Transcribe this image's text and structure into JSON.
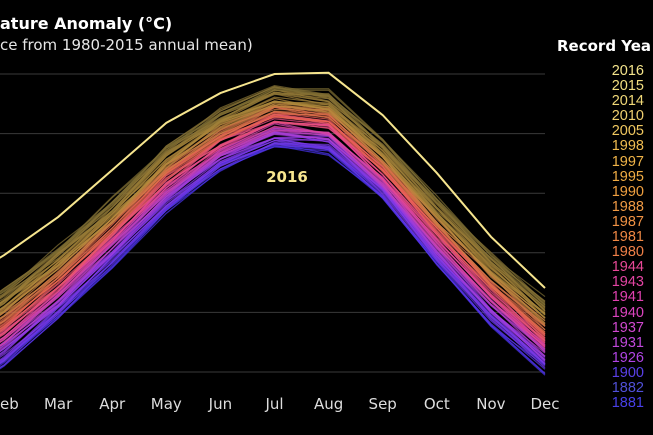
{
  "chart_data": {
    "type": "line",
    "title": "ature Anomaly (°C)",
    "subtitle": "ce from 1980-2015 annual mean)",
    "categories": [
      "eb",
      "Mar",
      "Apr",
      "May",
      "Jun",
      "Jul",
      "Aug",
      "Sep",
      "Oct",
      "Nov",
      "Dec"
    ],
    "ylim": [
      0,
      5.2
    ],
    "grid": true,
    "highlight_label": "2016",
    "series": [
      {
        "name": "2016",
        "color": "#f6e58e",
        "values": [
          1.96,
          2.6,
          3.39,
          4.18,
          4.68,
          5.0,
          5.02,
          4.31,
          3.34,
          2.27,
          1.41
        ]
      }
    ],
    "other_years_envelope": {
      "upper": [
        1.4,
        2.1,
        2.9,
        3.8,
        4.4,
        4.8,
        4.7,
        3.9,
        2.9,
        2.0,
        1.2
      ],
      "lower": [
        0.1,
        0.9,
        1.8,
        2.7,
        3.4,
        3.8,
        3.7,
        2.9,
        1.8,
        0.8,
        0.0
      ]
    },
    "legend": {
      "title": "Record Yea",
      "position": "right",
      "items": [
        {
          "label": "2016",
          "color": "#f4e48c"
        },
        {
          "label": "2015",
          "color": "#f2de80"
        },
        {
          "label": "2014",
          "color": "#f0d878"
        },
        {
          "label": "2010",
          "color": "#f0d070"
        },
        {
          "label": "2005",
          "color": "#f0c860"
        },
        {
          "label": "1998",
          "color": "#f0bc50"
        },
        {
          "label": "1997",
          "color": "#f0b448"
        },
        {
          "label": "1995",
          "color": "#f0ac44"
        },
        {
          "label": "1990",
          "color": "#f0a040"
        },
        {
          "label": "1988",
          "color": "#f09a44"
        },
        {
          "label": "1987",
          "color": "#f09244"
        },
        {
          "label": "1981",
          "color": "#f08844"
        },
        {
          "label": "1980",
          "color": "#f08048"
        },
        {
          "label": "1944",
          "color": "#e84898"
        },
        {
          "label": "1943",
          "color": "#e444a4"
        },
        {
          "label": "1941",
          "color": "#e040b0"
        },
        {
          "label": "1940",
          "color": "#dc44c0"
        },
        {
          "label": "1937",
          "color": "#d048d0"
        },
        {
          "label": "1931",
          "color": "#c048dc"
        },
        {
          "label": "1926",
          "color": "#b044e4"
        },
        {
          "label": "1900",
          "color": "#5a40e8"
        },
        {
          "label": "1882",
          "color": "#5050d8"
        },
        {
          "label": "1881",
          "color": "#4840e8"
        }
      ]
    }
  }
}
